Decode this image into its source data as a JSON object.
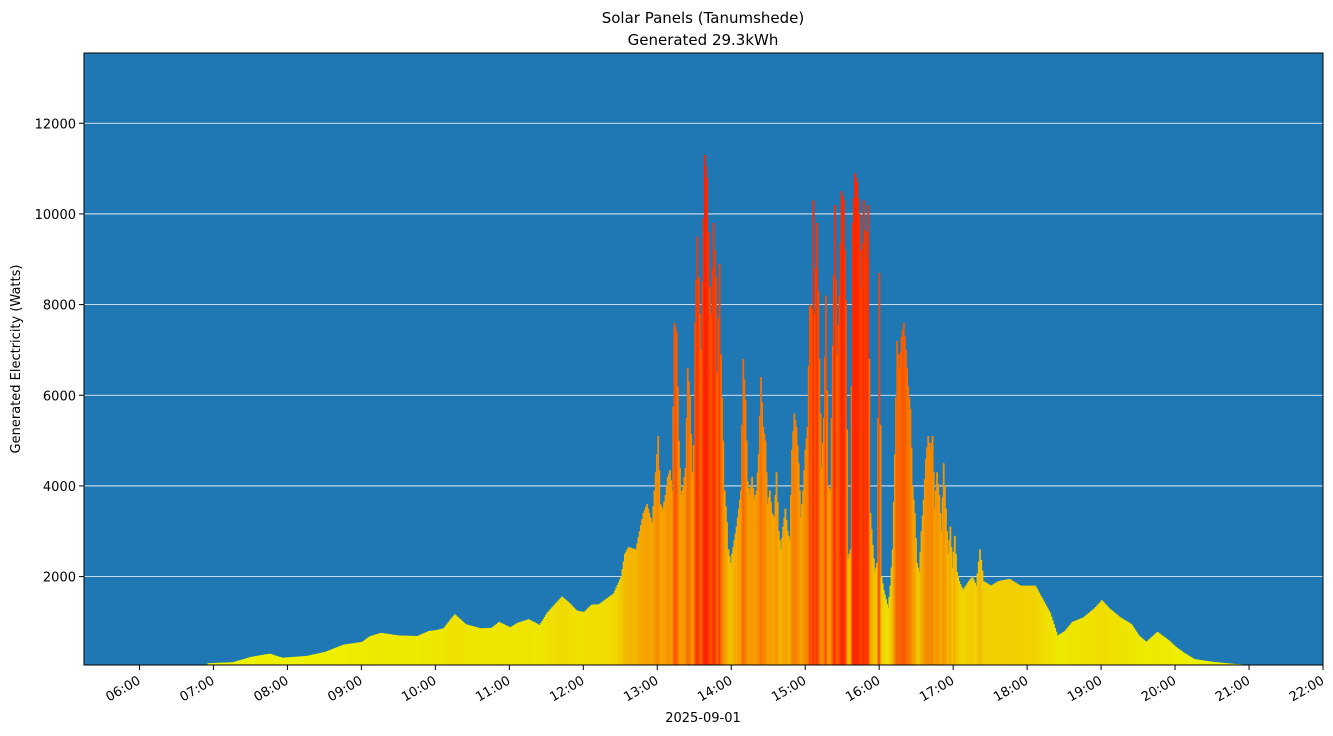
{
  "chart_data": {
    "type": "bar",
    "title": "Solar Panels (Tanumshede)",
    "subtitle": "Generated 29.3kWh",
    "xlabel": "2025-09-01",
    "ylabel": "Generated Electricity (Watts)",
    "xlim": [
      5.25,
      22.0
    ],
    "ylim": [
      50,
      13550
    ],
    "grid": "horizontal",
    "background": "#1f77b4",
    "x_ticks": [
      {
        "value": 6,
        "label": "06:00"
      },
      {
        "value": 7,
        "label": "07:00"
      },
      {
        "value": 8,
        "label": "08:00"
      },
      {
        "value": 9,
        "label": "09:00"
      },
      {
        "value": 10,
        "label": "10:00"
      },
      {
        "value": 11,
        "label": "11:00"
      },
      {
        "value": 12,
        "label": "12:00"
      },
      {
        "value": 13,
        "label": "13:00"
      },
      {
        "value": 14,
        "label": "14:00"
      },
      {
        "value": 15,
        "label": "15:00"
      },
      {
        "value": 16,
        "label": "16:00"
      },
      {
        "value": 17,
        "label": "17:00"
      },
      {
        "value": 18,
        "label": "18:00"
      },
      {
        "value": 19,
        "label": "19:00"
      },
      {
        "value": 20,
        "label": "20:00"
      },
      {
        "value": 21,
        "label": "21:00"
      },
      {
        "value": 22,
        "label": "22:00"
      }
    ],
    "y_ticks": [
      {
        "value": 2000,
        "label": "2000"
      },
      {
        "value": 4000,
        "label": "4000"
      },
      {
        "value": 6000,
        "label": "6000"
      },
      {
        "value": 8000,
        "label": "8000"
      },
      {
        "value": 10000,
        "label": "10000"
      },
      {
        "value": 12000,
        "label": "12000"
      }
    ],
    "bar_width_hours": 0.0167,
    "color_scale": "yellow-to-red by value",
    "series": [
      {
        "name": "Generated Electricity",
        "points": [
          [
            6.92,
            90
          ],
          [
            7.25,
            110
          ],
          [
            7.5,
            230
          ],
          [
            7.75,
            300
          ],
          [
            7.92,
            210
          ],
          [
            8.25,
            250
          ],
          [
            8.5,
            340
          ],
          [
            8.75,
            500
          ],
          [
            9.0,
            560
          ],
          [
            9.1,
            680
          ],
          [
            9.25,
            760
          ],
          [
            9.5,
            700
          ],
          [
            9.75,
            690
          ],
          [
            9.9,
            800
          ],
          [
            10.0,
            820
          ],
          [
            10.1,
            860
          ],
          [
            10.25,
            1170
          ],
          [
            10.4,
            950
          ],
          [
            10.6,
            860
          ],
          [
            10.75,
            870
          ],
          [
            10.85,
            1000
          ],
          [
            11.0,
            880
          ],
          [
            11.1,
            980
          ],
          [
            11.25,
            1060
          ],
          [
            11.4,
            930
          ],
          [
            11.5,
            1200
          ],
          [
            11.6,
            1380
          ],
          [
            11.7,
            1560
          ],
          [
            11.8,
            1420
          ],
          [
            11.9,
            1250
          ],
          [
            12.0,
            1220
          ],
          [
            12.1,
            1380
          ],
          [
            12.2,
            1390
          ],
          [
            12.3,
            1510
          ],
          [
            12.4,
            1630
          ],
          [
            12.5,
            2000
          ],
          [
            12.55,
            2500
          ],
          [
            12.6,
            2650
          ],
          [
            12.7,
            2600
          ],
          [
            12.75,
            3000
          ],
          [
            12.8,
            3400
          ],
          [
            12.85,
            3600
          ],
          [
            12.88,
            3400
          ],
          [
            12.92,
            3200
          ],
          [
            12.95,
            3900
          ],
          [
            13.0,
            5100
          ],
          [
            13.03,
            3600
          ],
          [
            13.06,
            3500
          ],
          [
            13.1,
            3800
          ],
          [
            13.13,
            4200
          ],
          [
            13.16,
            4350
          ],
          [
            13.19,
            3900
          ],
          [
            13.22,
            7600
          ],
          [
            13.25,
            7400
          ],
          [
            13.28,
            5000
          ],
          [
            13.31,
            3800
          ],
          [
            13.34,
            4000
          ],
          [
            13.37,
            4400
          ],
          [
            13.4,
            6600
          ],
          [
            13.43,
            6000
          ],
          [
            13.46,
            4300
          ],
          [
            13.48,
            4900
          ],
          [
            13.5,
            7600
          ],
          [
            13.53,
            9500
          ],
          [
            13.55,
            8600
          ],
          [
            13.58,
            7000
          ],
          [
            13.6,
            8500
          ],
          [
            13.63,
            11300
          ],
          [
            13.66,
            10800
          ],
          [
            13.68,
            9600
          ],
          [
            13.7,
            8400
          ],
          [
            13.72,
            7800
          ],
          [
            13.75,
            9800
          ],
          [
            13.78,
            8600
          ],
          [
            13.8,
            6500
          ],
          [
            13.83,
            8900
          ],
          [
            13.85,
            6900
          ],
          [
            13.88,
            5000
          ],
          [
            13.9,
            3900
          ],
          [
            13.93,
            3200
          ],
          [
            13.95,
            2600
          ],
          [
            13.98,
            2300
          ],
          [
            14.0,
            2500
          ],
          [
            14.03,
            2800
          ],
          [
            14.06,
            3100
          ],
          [
            14.09,
            3500
          ],
          [
            14.12,
            3900
          ],
          [
            14.15,
            6800
          ],
          [
            14.18,
            5900
          ],
          [
            14.21,
            4100
          ],
          [
            14.24,
            3800
          ],
          [
            14.27,
            4200
          ],
          [
            14.3,
            3700
          ],
          [
            14.33,
            3900
          ],
          [
            14.36,
            4700
          ],
          [
            14.39,
            6400
          ],
          [
            14.42,
            5300
          ],
          [
            14.45,
            5000
          ],
          [
            14.48,
            3600
          ],
          [
            14.51,
            3900
          ],
          [
            14.54,
            3400
          ],
          [
            14.57,
            3300
          ],
          [
            14.6,
            4300
          ],
          [
            14.63,
            3000
          ],
          [
            14.66,
            2600
          ],
          [
            14.69,
            3100
          ],
          [
            14.72,
            3500
          ],
          [
            14.75,
            3000
          ],
          [
            14.78,
            2800
          ],
          [
            14.81,
            4800
          ],
          [
            14.84,
            5600
          ],
          [
            14.87,
            5300
          ],
          [
            14.9,
            4500
          ],
          [
            14.93,
            3300
          ],
          [
            14.96,
            3900
          ],
          [
            14.99,
            4800
          ],
          [
            15.02,
            5300
          ],
          [
            15.05,
            8000
          ],
          [
            15.08,
            7900
          ],
          [
            15.1,
            10300
          ],
          [
            15.12,
            7800
          ],
          [
            15.15,
            9800
          ],
          [
            15.18,
            6800
          ],
          [
            15.21,
            4400
          ],
          [
            15.24,
            5500
          ],
          [
            15.27,
            8200
          ],
          [
            15.3,
            4000
          ],
          [
            15.33,
            3900
          ],
          [
            15.36,
            7100
          ],
          [
            15.39,
            10200
          ],
          [
            15.42,
            6900
          ],
          [
            15.45,
            8200
          ],
          [
            15.48,
            10500
          ],
          [
            15.51,
            10300
          ],
          [
            15.54,
            8100
          ],
          [
            15.57,
            2400
          ],
          [
            15.6,
            2600
          ],
          [
            15.63,
            9800
          ],
          [
            15.66,
            10900
          ],
          [
            15.69,
            10700
          ],
          [
            15.72,
            10000
          ],
          [
            15.75,
            8400
          ],
          [
            15.78,
            10300
          ],
          [
            15.81,
            9000
          ],
          [
            15.84,
            10200
          ],
          [
            15.87,
            3400
          ],
          [
            15.9,
            2700
          ],
          [
            15.93,
            2100
          ],
          [
            15.96,
            2300
          ],
          [
            15.99,
            8700
          ],
          [
            16.02,
            2000
          ],
          [
            16.05,
            1700
          ],
          [
            16.08,
            1500
          ],
          [
            16.11,
            1300
          ],
          [
            16.14,
            1800
          ],
          [
            16.17,
            2600
          ],
          [
            16.2,
            4700
          ],
          [
            16.23,
            7200
          ],
          [
            16.26,
            6600
          ],
          [
            16.29,
            7300
          ],
          [
            16.32,
            7600
          ],
          [
            16.35,
            7000
          ],
          [
            16.38,
            6200
          ],
          [
            16.41,
            5700
          ],
          [
            16.44,
            4000
          ],
          [
            16.47,
            3400
          ],
          [
            16.5,
            2300
          ],
          [
            16.53,
            2100
          ],
          [
            16.56,
            3000
          ],
          [
            16.59,
            3700
          ],
          [
            16.62,
            4600
          ],
          [
            16.65,
            5100
          ],
          [
            16.68,
            4800
          ],
          [
            16.71,
            5100
          ],
          [
            16.74,
            3500
          ],
          [
            16.77,
            4300
          ],
          [
            16.8,
            3800
          ],
          [
            16.83,
            3000
          ],
          [
            16.86,
            4500
          ],
          [
            16.89,
            3500
          ],
          [
            16.92,
            2500
          ],
          [
            16.95,
            3100
          ],
          [
            16.98,
            2200
          ],
          [
            17.01,
            2900
          ],
          [
            17.04,
            2100
          ],
          [
            17.07,
            1900
          ],
          [
            17.12,
            1700
          ],
          [
            17.2,
            1900
          ],
          [
            17.25,
            2000
          ],
          [
            17.3,
            1800
          ],
          [
            17.35,
            2600
          ],
          [
            17.4,
            1900
          ],
          [
            17.5,
            1800
          ],
          [
            17.6,
            1900
          ],
          [
            17.75,
            1950
          ],
          [
            17.9,
            1800
          ],
          [
            18.1,
            1800
          ],
          [
            18.2,
            1500
          ],
          [
            18.3,
            1200
          ],
          [
            18.4,
            700
          ],
          [
            18.5,
            800
          ],
          [
            18.6,
            1000
          ],
          [
            18.75,
            1100
          ],
          [
            18.9,
            1300
          ],
          [
            19.0,
            1480
          ],
          [
            19.1,
            1300
          ],
          [
            19.25,
            1100
          ],
          [
            19.4,
            950
          ],
          [
            19.5,
            700
          ],
          [
            19.6,
            560
          ],
          [
            19.75,
            780
          ],
          [
            19.9,
            600
          ],
          [
            20.0,
            450
          ],
          [
            20.1,
            330
          ],
          [
            20.25,
            180
          ],
          [
            20.5,
            120
          ],
          [
            20.75,
            80
          ],
          [
            21.0,
            50
          ],
          [
            21.1,
            30
          ]
        ]
      }
    ]
  }
}
